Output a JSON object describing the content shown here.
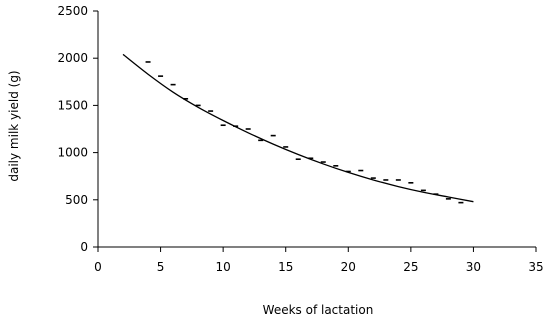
{
  "chart_data": {
    "type": "scatter",
    "title": "",
    "xlabel": "Weeks of lactation",
    "ylabel": "daily milk yield (g)",
    "xlim": [
      0,
      35
    ],
    "ylim": [
      0,
      2500
    ],
    "x_ticks": [
      0,
      5,
      10,
      15,
      20,
      25,
      30,
      35
    ],
    "y_ticks": [
      0,
      500,
      1000,
      1500,
      2000,
      2500
    ],
    "grid": false,
    "legend": "none",
    "series": [
      {
        "kind": "points",
        "marker": "dash",
        "x": [
          4,
          5,
          6,
          7,
          8,
          9,
          10,
          11,
          12,
          13,
          14,
          15,
          16,
          17,
          18,
          19,
          20,
          21,
          22,
          23,
          24,
          25,
          26,
          27,
          28,
          29
        ],
        "y": [
          1960,
          1810,
          1720,
          1570,
          1500,
          1440,
          1290,
          1280,
          1250,
          1130,
          1180,
          1060,
          930,
          940,
          900,
          860,
          800,
          810,
          730,
          710,
          710,
          680,
          600,
          560,
          510,
          470
        ]
      },
      {
        "kind": "curve",
        "style": "solid",
        "x": [
          2,
          4,
          6,
          8,
          10,
          12,
          14,
          16,
          18,
          20,
          22,
          24,
          26,
          28,
          30
        ],
        "y": [
          2040,
          1830,
          1640,
          1480,
          1340,
          1210,
          1090,
          980,
          880,
          790,
          710,
          640,
          580,
          530,
          480
        ]
      }
    ],
    "colors": {
      "axis": "#000000",
      "marks": "#000000"
    }
  }
}
